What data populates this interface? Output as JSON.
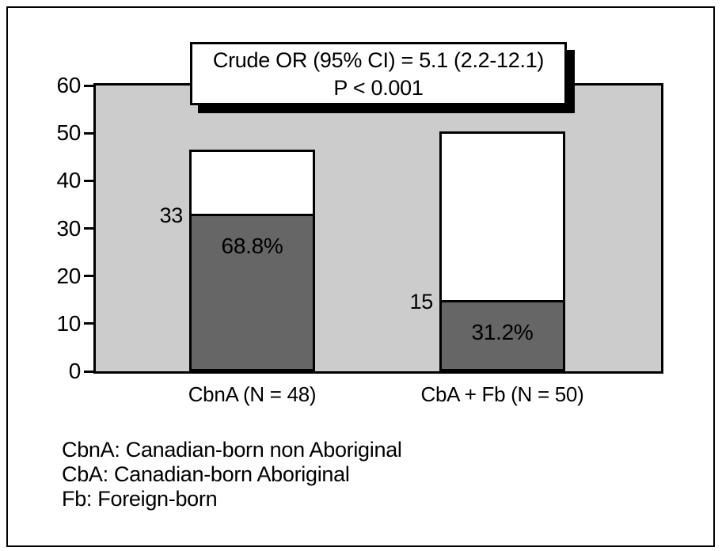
{
  "chart_data": {
    "type": "bar",
    "stacked": true,
    "title": "",
    "xlabel": "",
    "ylabel": "",
    "categories": [
      "CbnA (N = 48)",
      "CbA + Fb (N = 50)"
    ],
    "series": [
      {
        "name": "dark-lower-segment",
        "color": "#666666",
        "values": [
          33,
          15
        ],
        "value_labels": [
          "33",
          "15"
        ],
        "percent_labels": [
          "68.8%",
          "31.2%"
        ]
      },
      {
        "name": "white-upper-segment",
        "color": "#ffffff",
        "values": [
          13.5,
          35.3
        ]
      }
    ],
    "bar_totals": [
      46.5,
      50.3
    ],
    "group_sizes": [
      48,
      50
    ],
    "y_axis": {
      "min": 0,
      "max": 60,
      "tick_interval": 10,
      "tick_labels": [
        "0",
        "10",
        "20",
        "30",
        "40",
        "50",
        "60"
      ]
    },
    "grid": false,
    "legend": false,
    "plot_background": "#cccccc",
    "annotation": {
      "line1": "Crude OR (95% CI) = 5.1 (2.2-12.1)",
      "line2": "P < 0.001"
    },
    "footnotes": [
      "CbnA: Canadian-born non Aboriginal",
      "CbA: Canadian-born Aboriginal",
      "Fb: Foreign-born"
    ]
  },
  "colors": {
    "plot_background": "#cccccc",
    "dark_segment": "#666666",
    "white_segment": "#ffffff",
    "line": "#000000",
    "page_background": "#ffffff"
  }
}
